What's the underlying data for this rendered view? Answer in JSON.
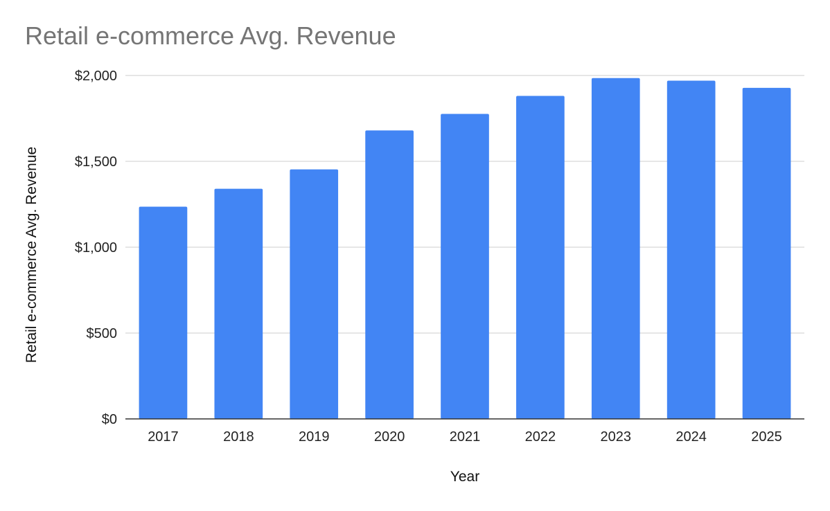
{
  "chart_data": {
    "type": "bar",
    "title": "Retail e-commerce Avg. Revenue",
    "xlabel": "Year",
    "ylabel": "Retail e-commerce Avg. Revenue",
    "categories": [
      "2017",
      "2018",
      "2019",
      "2020",
      "2021",
      "2022",
      "2023",
      "2024",
      "2025"
    ],
    "series": [
      {
        "values": [
          1236,
          1340,
          1453,
          1680,
          1776,
          1881,
          1985,
          1970,
          1928
        ],
        "color": "#4285f4"
      }
    ],
    "ylim": [
      0,
      2000
    ],
    "yticks": [
      0,
      500,
      1000,
      1500,
      2000
    ],
    "ytick_labels": [
      "$0",
      "$500",
      "$1,000",
      "$1,500",
      "$2,000"
    ],
    "grid": true,
    "legend": "none"
  }
}
